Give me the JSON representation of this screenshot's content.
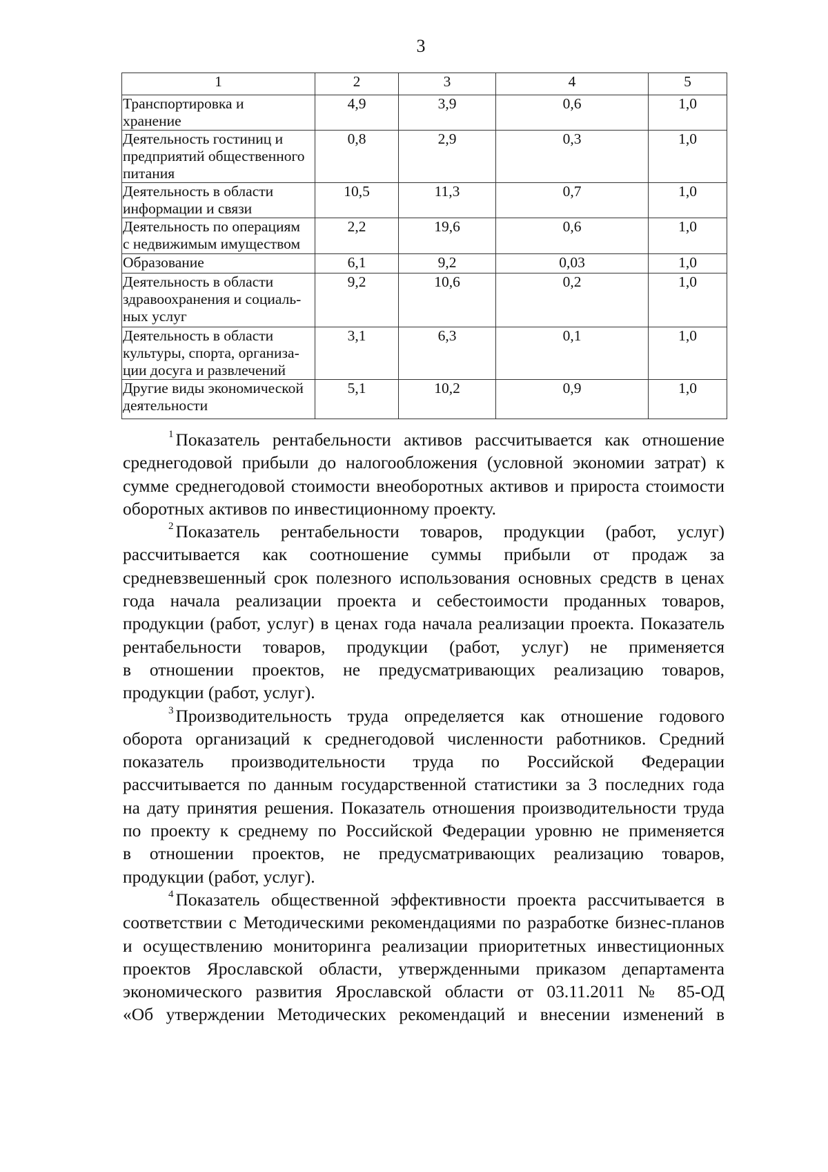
{
  "page_number": "3",
  "table": {
    "headers": [
      "1",
      "2",
      "3",
      "4",
      "5"
    ],
    "rows": [
      {
        "label": [
          "Транспортировка и",
          "хранение"
        ],
        "values": [
          "4,9",
          "3,9",
          "0,6",
          "1,0"
        ]
      },
      {
        "label": [
          "Деятельность гостиниц и",
          "предприятий общественного",
          "питания"
        ],
        "values": [
          "0,8",
          "2,9",
          "0,3",
          "1,0"
        ]
      },
      {
        "label": [
          "Деятельность в области",
          "информации и связи"
        ],
        "values": [
          "10,5",
          "11,3",
          "0,7",
          "1,0"
        ]
      },
      {
        "label": [
          "Деятельность по операциям",
          "с недвижимым имуществом"
        ],
        "values": [
          "2,2",
          "19,6",
          "0,6",
          "1,0"
        ]
      },
      {
        "label": [
          "Образование"
        ],
        "values": [
          "6,1",
          "9,2",
          "0,03",
          "1,0"
        ]
      },
      {
        "label": [
          "Деятельность в области",
          "здравоохранения и социаль-",
          "ных услуг"
        ],
        "values": [
          "9,2",
          "10,6",
          "0,2",
          "1,0"
        ]
      },
      {
        "label": [
          "Деятельность в области",
          "культуры, спорта, организа-",
          "ции досуга и развлечений"
        ],
        "values": [
          "3,1",
          "6,3",
          "0,1",
          "1,0"
        ]
      },
      {
        "label": [
          "Другие виды экономической",
          "деятельности"
        ],
        "values": [
          "5,1",
          "10,2",
          "0,9",
          "1,0"
        ]
      }
    ]
  },
  "footnotes": [
    {
      "mark": "1",
      "lines": [
        "Показатель рентабельности активов рассчитывается как отношение",
        "среднегодовой прибыли до налогообложения (условной экономии затрат) к",
        "сумме среднегодовой стоимости внеоборотных активов и прироста стоимости",
        "оборотных активов по инвестиционному проекту."
      ]
    },
    {
      "mark": "2",
      "lines": [
        "Показатель рентабельности товаров, продукции (работ, услуг)",
        "рассчитывается как соотношение суммы прибыли от продаж за",
        "средневзвешенный срок полезного использования основных средств в ценах",
        "года начала реализации проекта и себестоимости проданных товаров,",
        "продукции (работ, услуг) в ценах года начала реализации проекта. Показатель",
        "рентабельности товаров, продукции (работ, услуг) не применяется",
        "в отношении проектов, не предусматривающих реализацию товаров,",
        "продукции (работ, услуг)."
      ]
    },
    {
      "mark": "3",
      "lines": [
        "Производительность труда определяется как отношение годового",
        "оборота организаций к среднегодовой численности работников. Средний",
        "показатель производительности труда по Российской Федерации",
        "рассчитывается по данным государственной статистики за 3 последних года",
        "на дату принятия решения. Показатель отношения производительности труда",
        "по проекту к среднему по Российской Федерации уровню не применяется",
        "в отношении проектов, не предусматривающих реализацию товаров,",
        "продукции (работ, услуг)."
      ]
    },
    {
      "mark": "4",
      "lines": [
        "Показатель общественной эффективности проекта рассчитывается в",
        "соответствии с Методическими рекомендациями по разработке бизнес-планов",
        "и осуществлению мониторинга реализации приоритетных инвестиционных",
        "проектов Ярославской области, утвержденными приказом департамента",
        "экономического развития Ярославской области от 03.11.2011 № 85-ОД",
        "«Об утверждении Методических рекомендаций и внесении изменений в"
      ],
      "continues": true
    }
  ]
}
